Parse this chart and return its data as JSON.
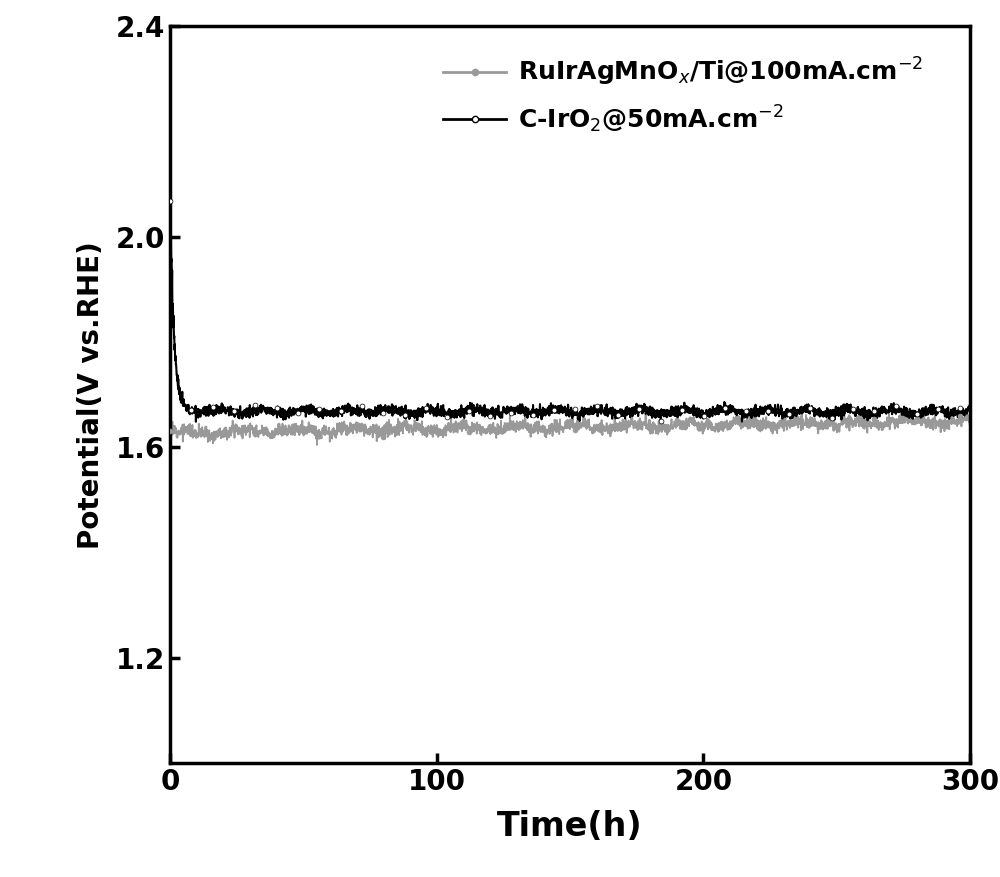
{
  "title": "",
  "xlabel": "Time(h)",
  "ylabel": "Potential(V vs.RHE)",
  "xlim": [
    0,
    300
  ],
  "ylim": [
    1.0,
    2.4
  ],
  "yticks": [
    1.2,
    1.6,
    2.0,
    2.4
  ],
  "xticks": [
    0,
    100,
    200,
    300
  ],
  "line1_label": "RuIrAgMnO$_x$/Ti@100mA.cm$^{-2}$",
  "line2_label": "C-IrO$_2$@50mA.cm$^{-2}$",
  "line1_color": "#999999",
  "line2_color": "#000000",
  "background_color": "#ffffff",
  "axis_linewidth": 2.5,
  "line1_stable_value": 1.628,
  "line2_stable_value": 1.668,
  "line2_initial_peak": 2.07,
  "line1_end_value": 1.65,
  "noise_amplitude_1": 0.006,
  "noise_amplitude_2": 0.005,
  "marker_size": 3.5,
  "figsize": [
    10.0,
    8.77
  ],
  "dpi": 100,
  "legend_fontsize": 18,
  "tick_fontsize": 20,
  "xlabel_fontsize": 24,
  "ylabel_fontsize": 20
}
